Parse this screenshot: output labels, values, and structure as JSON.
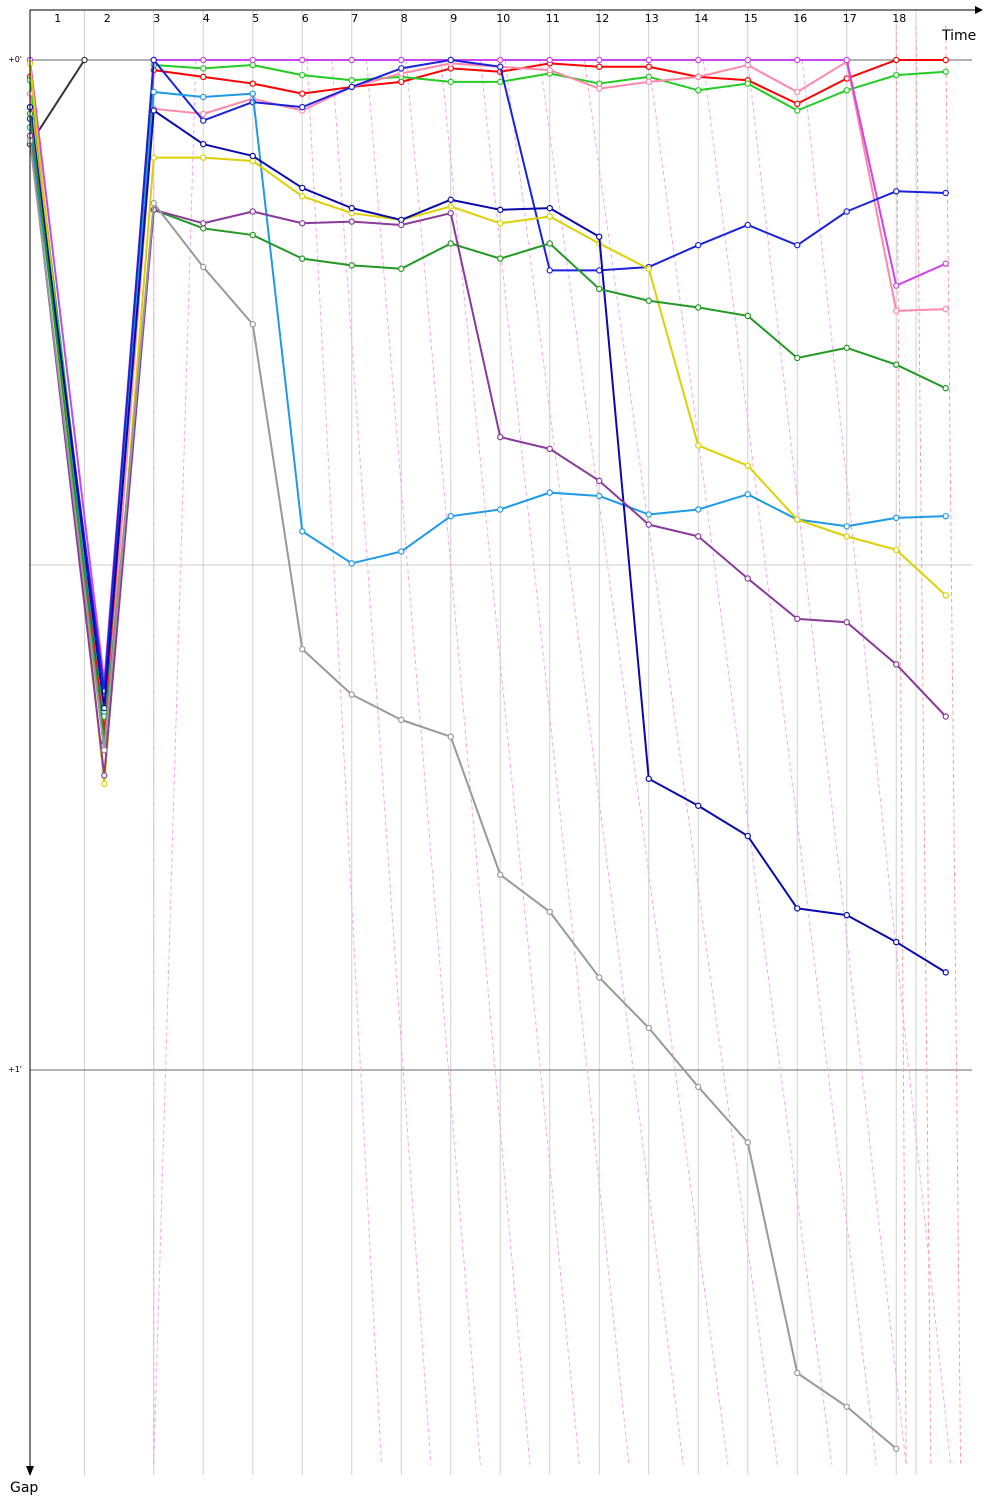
{
  "chart_data": {
    "type": "line",
    "x_axis_label": "Time",
    "y_axis_label": "Gap",
    "lap_labels": [
      "1",
      "2",
      "3",
      "4",
      "5",
      "6",
      "7",
      "8",
      "9",
      "10",
      "11",
      "12",
      "13",
      "14",
      "15",
      "16",
      "17",
      "18"
    ],
    "lap_label_x": [
      1,
      2,
      3,
      4,
      5,
      6,
      7,
      8,
      9,
      10,
      11,
      12,
      13,
      14,
      15,
      16,
      17,
      18
    ],
    "y_ticks": [
      {
        "label": "+0'",
        "value": 0
      },
      {
        "label": "+1'",
        "value": 60
      }
    ],
    "y_minor_gridlines": [
      30
    ],
    "ylim": [
      0,
      83
    ],
    "xlim": [
      0.5,
      19.3
    ],
    "lap_boundaries": [
      1.6,
      3.0,
      4.0,
      5.0,
      6.0,
      7.0,
      8.0,
      9.0,
      10.0,
      11.0,
      12.0,
      13.0,
      14.0,
      15.0,
      16.0,
      17.0,
      18.0,
      18.4
    ],
    "pit_lines_pink": [
      [
        3.0,
        3.0
      ],
      [
        3.85,
        3.0
      ],
      [
        6.1,
        7.6
      ],
      [
        6.6,
        8.6
      ],
      [
        7.3,
        9.6
      ],
      [
        8.1,
        10.6
      ],
      [
        8.8,
        11.6
      ],
      [
        9.6,
        12.6
      ],
      [
        10.1,
        13.7
      ],
      [
        10.8,
        14.6
      ],
      [
        11.7,
        15.6
      ],
      [
        13.0,
        16.7
      ],
      [
        14.1,
        17.6
      ],
      [
        15.0,
        18.2
      ],
      [
        16.1,
        19.1
      ]
    ],
    "pit_lines_red": [
      [
        18.0,
        18.2
      ],
      [
        18.4,
        18.7
      ],
      [
        19.0,
        19.3
      ]
    ],
    "series": [
      {
        "color": "#333333",
        "points": [
          [
            0.5,
            5
          ],
          [
            1.6,
            0
          ]
        ]
      },
      {
        "color": "#ff0000",
        "points": [
          [
            0.5,
            1
          ],
          [
            2.0,
            40
          ],
          [
            3.0,
            0.6
          ],
          [
            4.0,
            1
          ],
          [
            5.0,
            1.4
          ],
          [
            6.0,
            2
          ],
          [
            7.0,
            1.6
          ],
          [
            8.0,
            1.3
          ],
          [
            9.0,
            0.5
          ],
          [
            10.0,
            0.7
          ],
          [
            11.0,
            0.2
          ],
          [
            12.0,
            0.4
          ],
          [
            13.0,
            0.4
          ],
          [
            14.0,
            1
          ],
          [
            15.0,
            1.2
          ],
          [
            16.0,
            2.6
          ],
          [
            17.0,
            1.1
          ],
          [
            18.0,
            0
          ],
          [
            19.0,
            0
          ]
        ]
      },
      {
        "color": "#22cc22",
        "points": [
          [
            0.5,
            1.2
          ],
          [
            2.0,
            39
          ],
          [
            3.0,
            0.3
          ],
          [
            4.0,
            0.5
          ],
          [
            5.0,
            0.3
          ],
          [
            6.0,
            0.9
          ],
          [
            7.0,
            1.2
          ],
          [
            8.0,
            1
          ],
          [
            9.0,
            1.3
          ],
          [
            10.0,
            1.3
          ],
          [
            11.0,
            0.8
          ],
          [
            12.0,
            1.4
          ],
          [
            13.0,
            1
          ],
          [
            14.0,
            1.8
          ],
          [
            15.0,
            1.4
          ],
          [
            16.0,
            3
          ],
          [
            17.0,
            1.8
          ],
          [
            18.0,
            0.9
          ],
          [
            19.0,
            0.7
          ]
        ]
      },
      {
        "color": "#ff88aa",
        "points": [
          [
            0.5,
            2
          ],
          [
            2.0,
            41
          ],
          [
            3.0,
            2.9
          ],
          [
            4.0,
            3.2
          ],
          [
            5.0,
            2.3
          ],
          [
            6.0,
            3
          ],
          [
            7.0,
            1.6
          ],
          [
            8.0,
            0.8
          ],
          [
            9.0,
            0.2
          ],
          [
            10.0,
            0.4
          ],
          [
            11.0,
            0.6
          ],
          [
            12.0,
            1.7
          ],
          [
            13.0,
            1.3
          ],
          [
            14.0,
            1
          ],
          [
            15.0,
            0.3
          ],
          [
            16.0,
            1.9
          ],
          [
            17.0,
            0.1
          ],
          [
            18.0,
            14.9
          ],
          [
            19.0,
            14.8
          ]
        ]
      },
      {
        "color": "#cc44ee",
        "points": [
          [
            0.5,
            0
          ],
          [
            2.0,
            37
          ],
          [
            3.0,
            0
          ],
          [
            4.0,
            0
          ],
          [
            5.0,
            0
          ],
          [
            6.0,
            0
          ],
          [
            7.0,
            0
          ],
          [
            8.0,
            0
          ],
          [
            9.0,
            0
          ],
          [
            10.0,
            0
          ],
          [
            11.0,
            0
          ],
          [
            12.0,
            0
          ],
          [
            13.0,
            0
          ],
          [
            14.0,
            0
          ],
          [
            15.0,
            0
          ],
          [
            16.0,
            0
          ],
          [
            17.0,
            0
          ],
          [
            18.0,
            13.4
          ],
          [
            19.0,
            12.1
          ]
        ]
      },
      {
        "color": "#1a22dd",
        "points": [
          [
            0.5,
            3.5
          ],
          [
            2.0,
            37.5
          ],
          [
            3.0,
            0
          ],
          [
            4.0,
            3.6
          ],
          [
            5.0,
            2.5
          ],
          [
            6.0,
            2.8
          ],
          [
            7.0,
            1.6
          ],
          [
            8.0,
            0.5
          ],
          [
            9.0,
            0
          ],
          [
            10.0,
            0.4
          ],
          [
            11.0,
            12.5
          ],
          [
            12.0,
            12.5
          ],
          [
            13.0,
            12.3
          ],
          [
            14.0,
            11
          ],
          [
            15.0,
            9.8
          ],
          [
            16.0,
            11
          ],
          [
            17.0,
            9
          ],
          [
            18.0,
            7.8
          ],
          [
            19.0,
            7.9
          ]
        ]
      },
      {
        "color": "#1e9ae6",
        "points": [
          [
            0.5,
            4
          ],
          [
            2.0,
            38.7
          ],
          [
            3.0,
            1.9
          ],
          [
            4.0,
            2.2
          ],
          [
            5.0,
            2
          ],
          [
            6.0,
            28
          ],
          [
            7.0,
            29.9
          ],
          [
            8.0,
            29.2
          ],
          [
            9.0,
            27.1
          ],
          [
            10.0,
            26.7
          ],
          [
            11.0,
            25.7
          ],
          [
            12.0,
            25.9
          ],
          [
            13.0,
            27
          ],
          [
            14.0,
            26.7
          ],
          [
            15.0,
            25.8
          ],
          [
            16.0,
            27.3
          ],
          [
            17.0,
            27.7
          ],
          [
            18.0,
            27.2
          ],
          [
            19.0,
            27.1
          ]
        ]
      },
      {
        "color": "#ddd000",
        "points": [
          [
            0.5,
            0.2
          ],
          [
            2.0,
            43
          ],
          [
            3.0,
            5.8
          ],
          [
            4.0,
            5.8
          ],
          [
            5.0,
            6
          ],
          [
            6.0,
            8.1
          ],
          [
            7.0,
            9.1
          ],
          [
            8.0,
            9.5
          ],
          [
            9.0,
            8.7
          ],
          [
            10.0,
            9.7
          ],
          [
            11.0,
            9.3
          ],
          [
            12.0,
            10.9
          ],
          [
            13.0,
            12.4
          ],
          [
            14.0,
            22.9
          ],
          [
            15.0,
            24.1
          ],
          [
            16.0,
            27.3
          ],
          [
            17.0,
            28.3
          ],
          [
            18.0,
            29.1
          ],
          [
            19.0,
            31.8
          ]
        ]
      },
      {
        "color": "#0a0aaa",
        "points": [
          [
            0.5,
            2.8
          ],
          [
            2.0,
            38.5
          ],
          [
            3.0,
            3
          ],
          [
            4.0,
            5
          ],
          [
            5.0,
            5.7
          ],
          [
            6.0,
            7.6
          ],
          [
            7.0,
            8.8
          ],
          [
            8.0,
            9.5
          ],
          [
            9.0,
            8.3
          ],
          [
            10.0,
            8.9
          ],
          [
            11.0,
            8.8
          ],
          [
            12.0,
            10.5
          ],
          [
            13.0,
            42.7
          ],
          [
            14.0,
            44.3
          ],
          [
            15.0,
            46.1
          ],
          [
            16.0,
            50.4
          ],
          [
            17.0,
            50.8
          ],
          [
            18.0,
            52.4
          ],
          [
            19.0,
            54.2
          ]
        ]
      },
      {
        "color": "#229922",
        "points": [
          [
            0.5,
            3.2
          ],
          [
            2.0,
            40.5
          ],
          [
            3.0,
            8.9
          ],
          [
            4.0,
            10
          ],
          [
            5.0,
            10.4
          ],
          [
            6.0,
            11.8
          ],
          [
            7.0,
            12.2
          ],
          [
            8.0,
            12.4
          ],
          [
            9.0,
            10.9
          ],
          [
            10.0,
            11.8
          ],
          [
            11.0,
            10.9
          ],
          [
            12.0,
            13.6
          ],
          [
            13.0,
            14.3
          ],
          [
            14.0,
            14.7
          ],
          [
            15.0,
            15.2
          ],
          [
            16.0,
            17.7
          ],
          [
            17.0,
            17.1
          ],
          [
            18.0,
            18.1
          ],
          [
            19.0,
            19.5
          ]
        ]
      },
      {
        "color": "#8a3a9a",
        "points": [
          [
            0.5,
            4.5
          ],
          [
            2.0,
            42.5
          ],
          [
            3.0,
            8.9
          ],
          [
            4.0,
            9.7
          ],
          [
            5.0,
            9
          ],
          [
            6.0,
            9.7
          ],
          [
            7.0,
            9.6
          ],
          [
            8.0,
            9.8
          ],
          [
            9.0,
            9.1
          ],
          [
            10.0,
            22.4
          ],
          [
            11.0,
            23.1
          ],
          [
            12.0,
            25
          ],
          [
            13.0,
            27.6
          ],
          [
            14.0,
            28.3
          ],
          [
            15.0,
            30.8
          ],
          [
            16.0,
            33.2
          ],
          [
            17.0,
            33.4
          ],
          [
            18.0,
            35.9
          ],
          [
            19.0,
            39
          ]
        ]
      },
      {
        "color": "#999999",
        "points": [
          [
            0.5,
            4.8
          ],
          [
            2.0,
            41
          ],
          [
            3.0,
            8.5
          ],
          [
            4.0,
            12.3
          ],
          [
            5.0,
            15.7
          ],
          [
            6.0,
            35
          ],
          [
            7.0,
            37.7
          ],
          [
            8.0,
            39.2
          ],
          [
            9.0,
            40.2
          ],
          [
            10.0,
            48.4
          ],
          [
            11.0,
            50.6
          ],
          [
            12.0,
            54.5
          ],
          [
            13.0,
            57.5
          ],
          [
            14.0,
            61
          ],
          [
            15.0,
            64.3
          ],
          [
            16.0,
            78
          ],
          [
            17.0,
            80
          ],
          [
            18.0,
            82.5
          ]
        ]
      }
    ]
  }
}
